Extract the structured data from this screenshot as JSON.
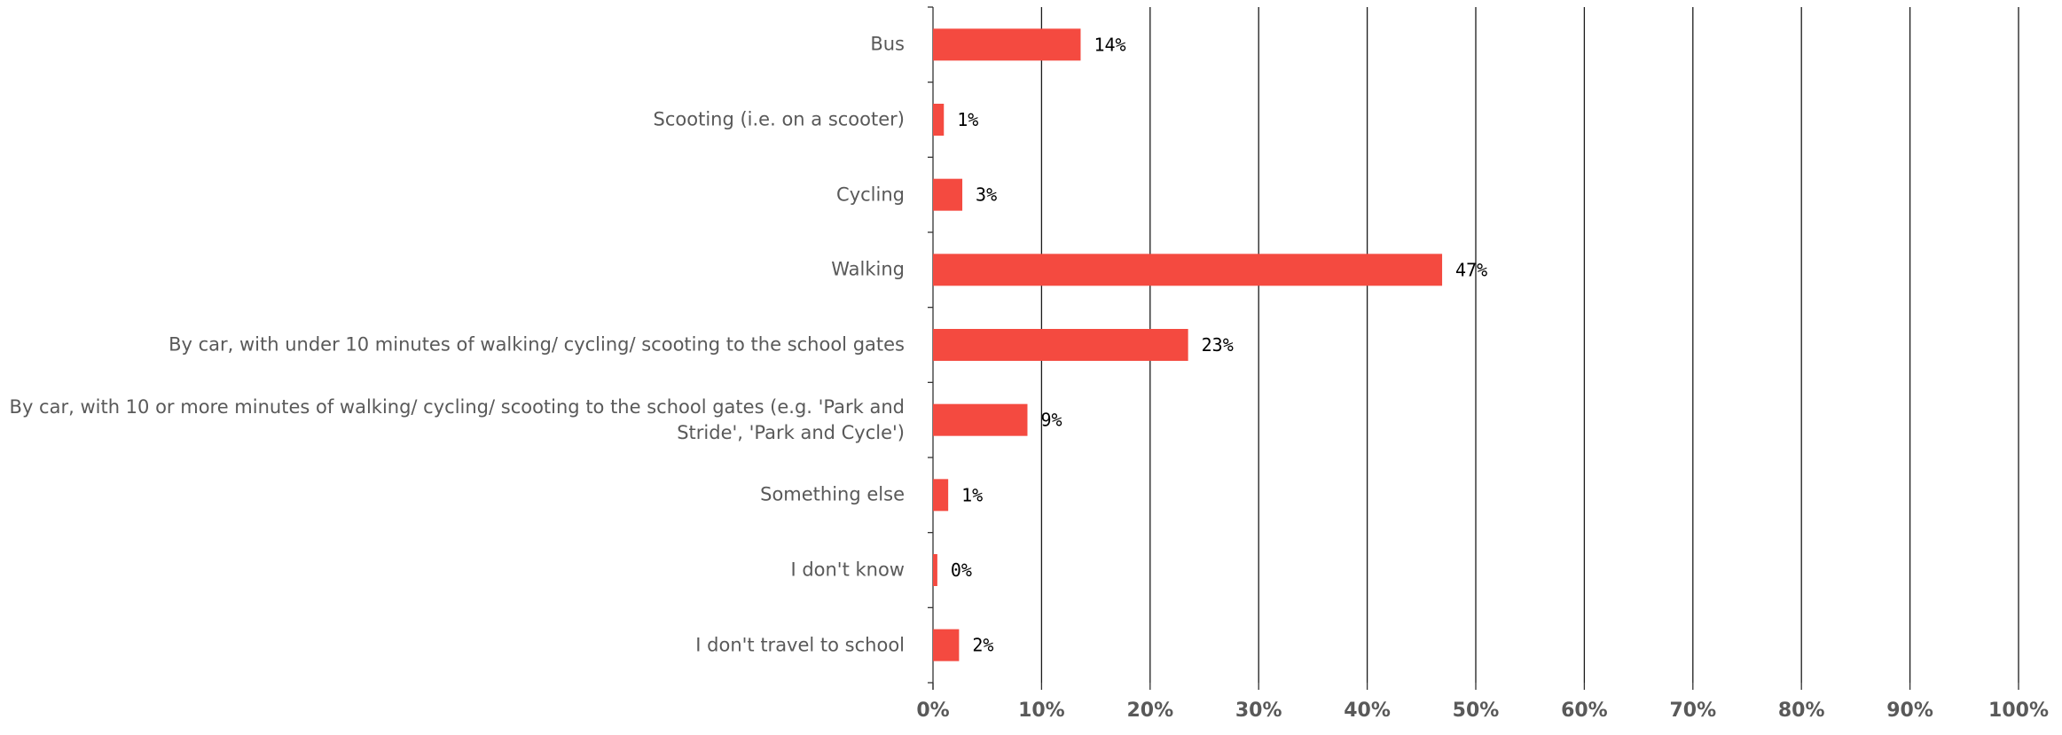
{
  "chart_data": {
    "type": "bar",
    "orientation": "horizontal",
    "title": "",
    "xlabel": "",
    "ylabel": "",
    "categories": [
      "Bus",
      "Scooting (i.e. on a scooter)",
      "Cycling",
      "Walking",
      "By car, with under 10 minutes of walking/ cycling/ scooting to the school gates",
      "By car, with 10 or more minutes of walking/ cycling/ scooting to the school gates (e.g. 'Park and Stride', 'Park and Cycle')",
      "Something else",
      "I don't know",
      "I don't travel to school"
    ],
    "values": [
      13.6,
      1.0,
      2.7,
      46.9,
      23.5,
      8.7,
      1.4,
      0.4,
      2.4
    ],
    "data_labels": [
      "14%",
      "1%",
      "3%",
      "47%",
      "23%",
      "9%",
      "1%",
      "0%",
      "2%"
    ],
    "xlim": [
      0,
      100
    ],
    "xticks": [
      0,
      10,
      20,
      30,
      40,
      50,
      60,
      70,
      80,
      90,
      100
    ],
    "xtick_labels": [
      "0%",
      "10%",
      "20%",
      "30%",
      "40%",
      "50%",
      "60%",
      "70%",
      "80%",
      "90%",
      "100%"
    ],
    "grid": true,
    "legend": "none",
    "bar_color": "#f44a40"
  }
}
